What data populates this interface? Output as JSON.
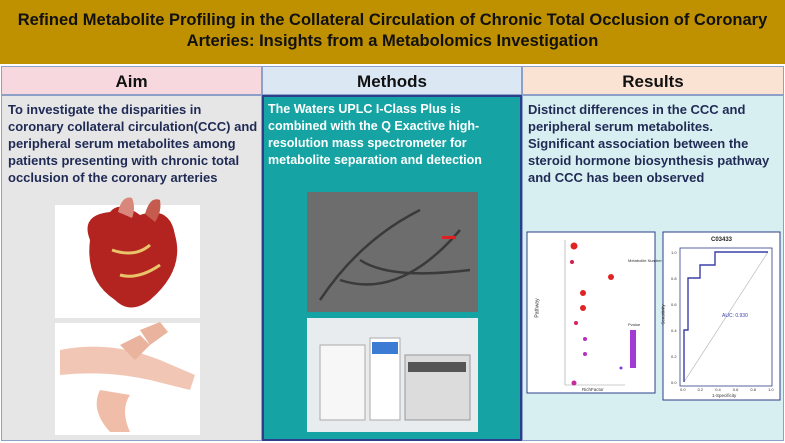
{
  "header": {
    "title": "Refined Metabolite Profiling in the Collateral Circulation of Chronic Total Occlusion of Coronary Arteries: Insights from a  Metabolomics Investigation"
  },
  "columns": [
    {
      "heading": "Aim",
      "text": "To investigate the disparities in coronary collateral circulation(CCC) and peripheral serum metabolites among patients presenting with chronic total occlusion of the coronary arteries"
    },
    {
      "heading": "Methods",
      "text": "The Waters UPLC I-Class Plus is combined with the Q Exactive high-resolution mass spectrometer for metabolite separation and detection"
    },
    {
      "heading": "Results",
      "text": "Distinct differences in the CCC and peripheral serum metabolites. Significant association between the steroid hormone biosynthesis pathway and CCC has been observed"
    }
  ],
  "results_figures": {
    "bubble": {
      "y_label": "Pathway",
      "x_label": "RichFactor",
      "legend_size_title": "Metabolite Number",
      "legend_color_title": "Pvalue"
    },
    "roc": {
      "title": "C03433",
      "annotation": "AUC: 0.930",
      "y_label": "Sensitivity",
      "x_label": "1-Specificity",
      "ticks": [
        "0.0",
        "0.2",
        "0.4",
        "0.6",
        "0.8",
        "1.0"
      ]
    }
  }
}
